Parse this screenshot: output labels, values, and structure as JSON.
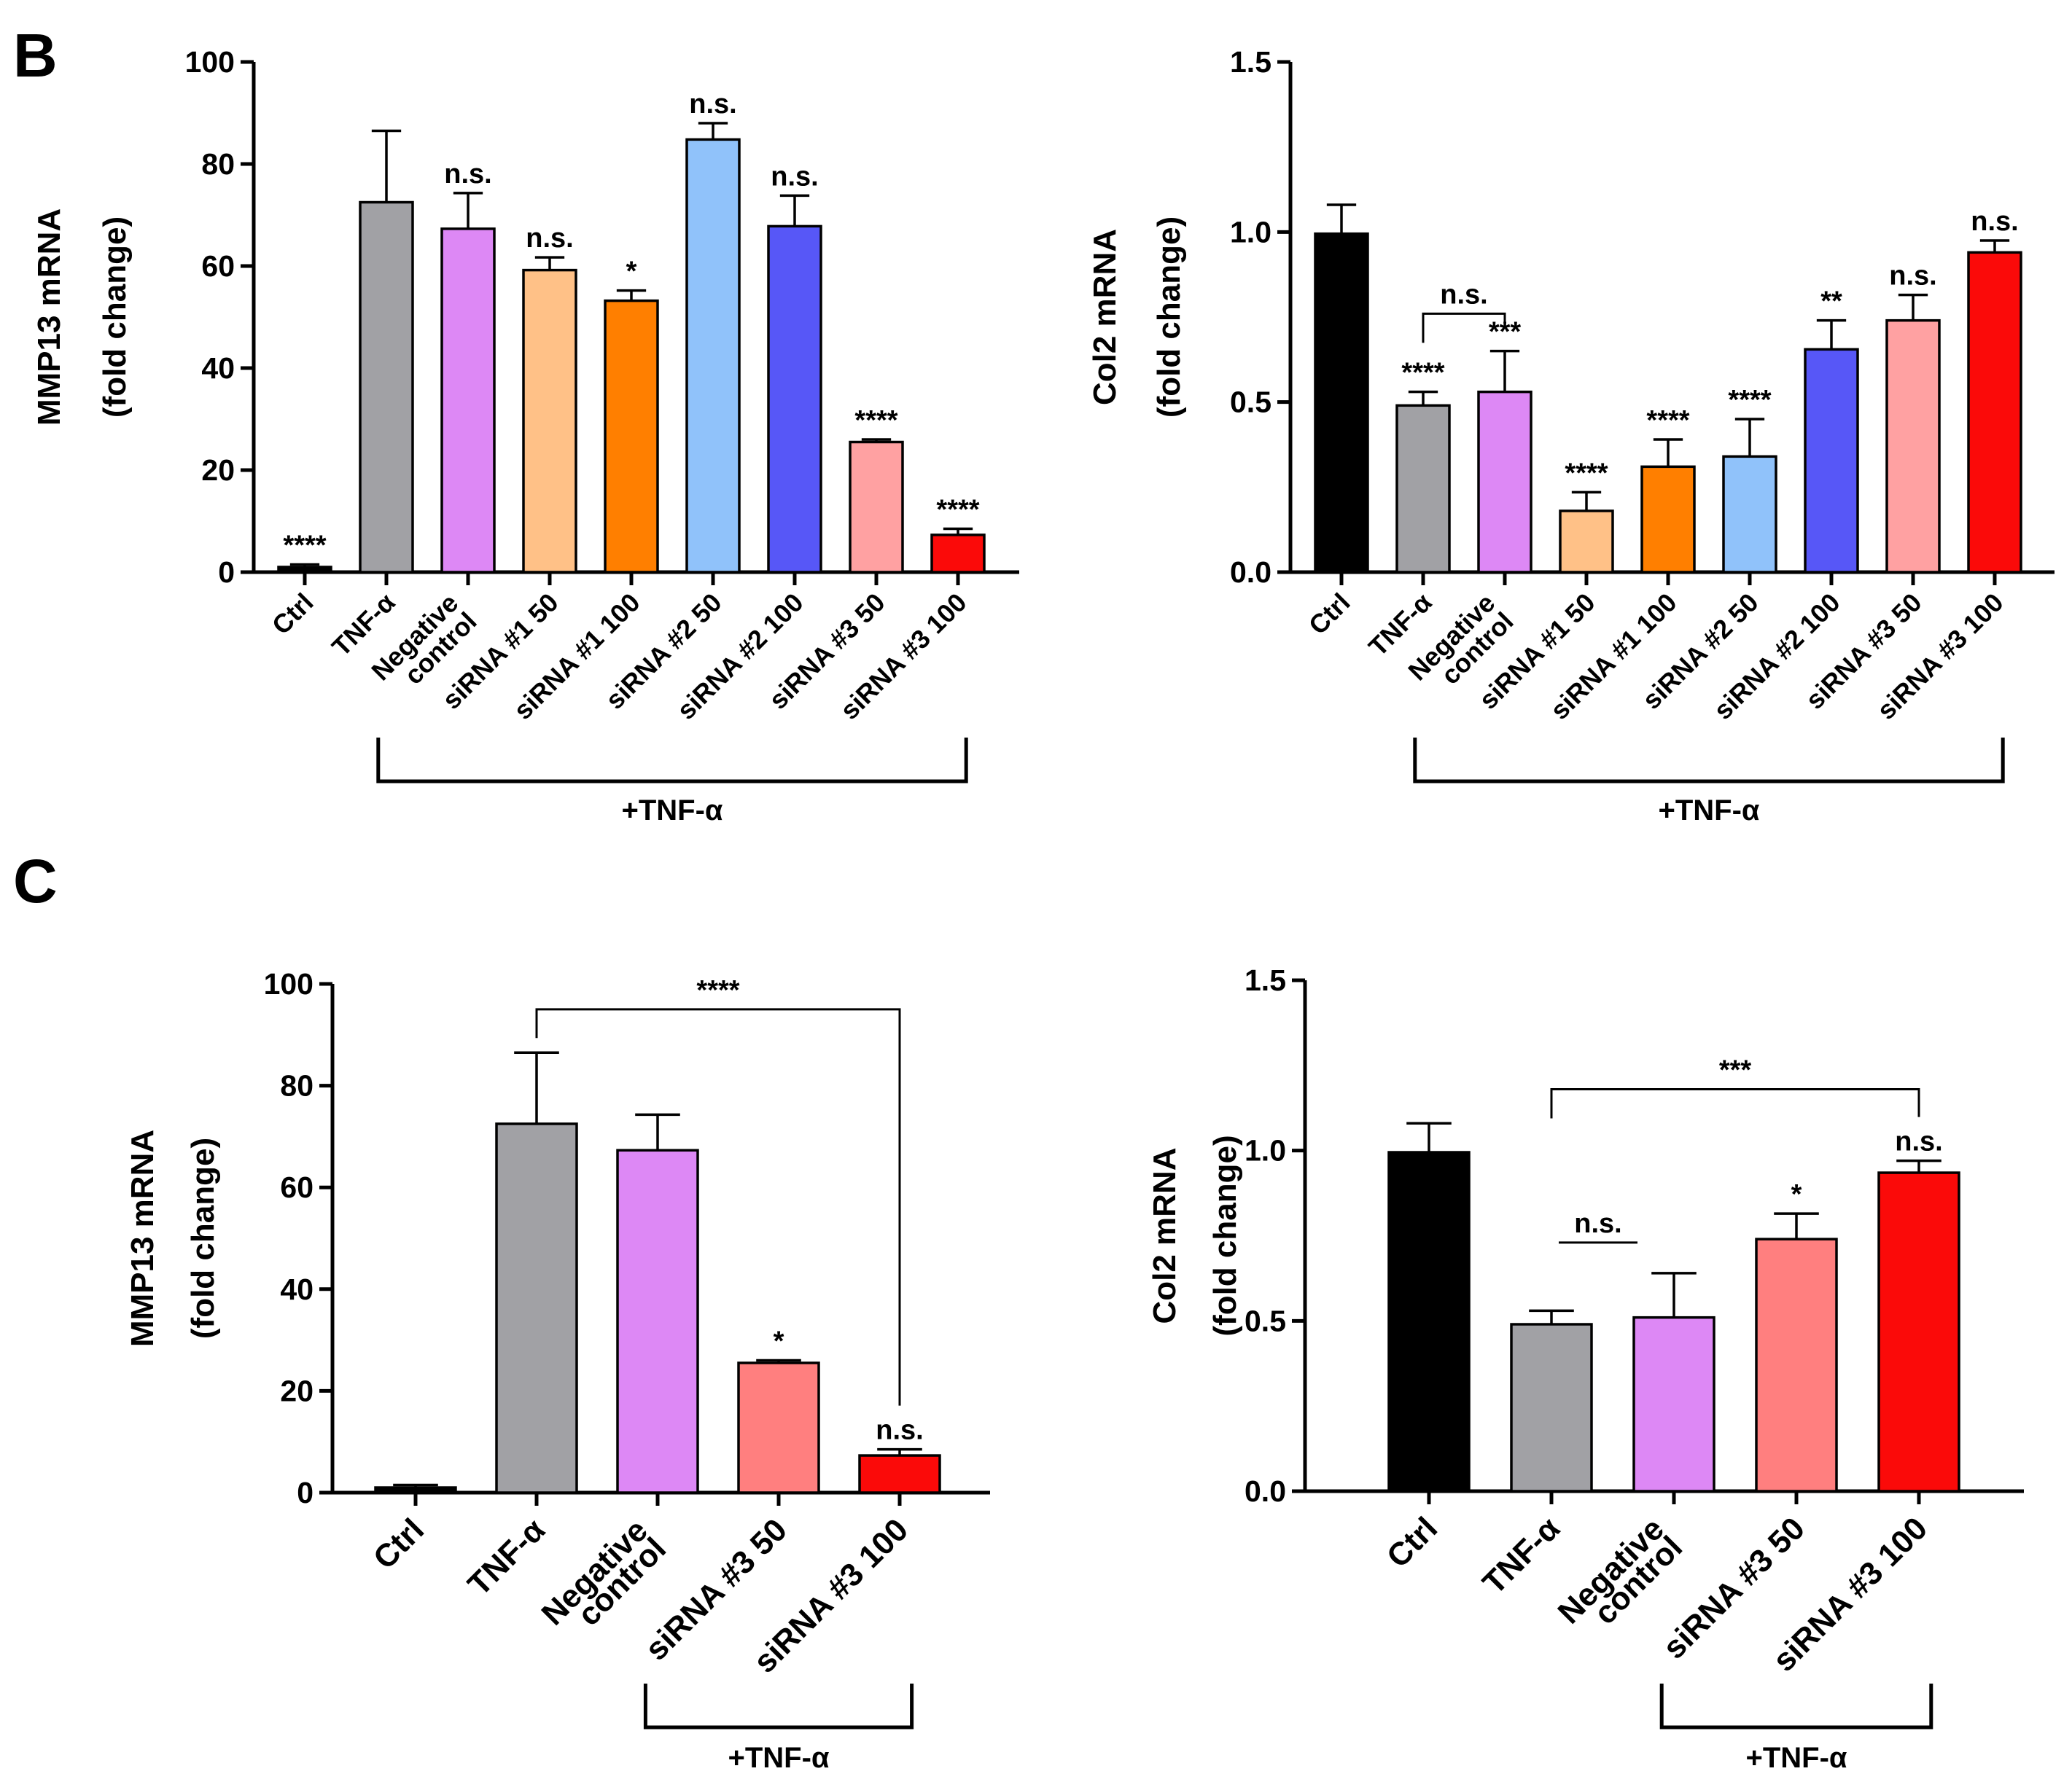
{
  "panels": {
    "B": "B",
    "C": "C"
  },
  "chart_data": [
    {
      "id": "b-mmp13",
      "panel": "B",
      "type": "bar",
      "ylabel": [
        "MMP13 mRNA",
        "(fold change)"
      ],
      "ylim": [
        0,
        100
      ],
      "yticks": [
        "0",
        "20",
        "40",
        "60",
        "80",
        "100"
      ],
      "categories": [
        [
          "Ctrl"
        ],
        [
          "TNF-α"
        ],
        [
          "Negative",
          "control"
        ],
        [
          "siRNA #1 50"
        ],
        [
          "siRNA #1 100"
        ],
        [
          "siRNA #2 50"
        ],
        [
          "siRNA #2 100"
        ],
        [
          "siRNA #3 50"
        ],
        [
          "siRNA #3 100"
        ]
      ],
      "values": [
        1,
        72.5,
        67.3,
        59.2,
        53.2,
        84.8,
        67.8,
        25.5,
        7.3
      ],
      "errors": [
        0.5,
        14,
        7,
        2.5,
        2.0,
        3.2,
        6,
        0.5,
        1.2
      ],
      "colors": [
        "#000000",
        "#a1a1a5",
        "#dd88f5",
        "#ffc187",
        "#ff7f00",
        "#90c2fa",
        "#5757f7",
        "#ffa1a2",
        "#fb0a09"
      ],
      "significance": [
        "****",
        "",
        "n.s.",
        "n.s.",
        "*",
        "n.s.",
        "n.s.",
        "****",
        "****"
      ],
      "group_label": "+TNF-α",
      "group_range": [
        1,
        8
      ],
      "comparisons": []
    },
    {
      "id": "b-col2",
      "panel": "B",
      "type": "bar",
      "ylabel": [
        "Col2 mRNA",
        "(fold change)"
      ],
      "ylim": [
        0,
        1.5
      ],
      "yticks": [
        "0.0",
        "0.5",
        "1.0",
        "1.5"
      ],
      "categories": [
        [
          "Ctrl"
        ],
        [
          "TNF-α"
        ],
        [
          "Negative",
          "control"
        ],
        [
          "siRNA #1 50"
        ],
        [
          "siRNA #1 100"
        ],
        [
          "siRNA #2 50"
        ],
        [
          "siRNA #2 100"
        ],
        [
          "siRNA #3 50"
        ],
        [
          "siRNA #3 100"
        ]
      ],
      "values": [
        0.995,
        0.49,
        0.53,
        0.18,
        0.31,
        0.34,
        0.655,
        0.74,
        0.94
      ],
      "errors": [
        0.085,
        0.04,
        0.12,
        0.055,
        0.08,
        0.11,
        0.085,
        0.075,
        0.035
      ],
      "colors": [
        "#000000",
        "#a1a1a5",
        "#dd88f5",
        "#ffc187",
        "#ff7f00",
        "#90c2fa",
        "#5757f7",
        "#ffa1a2",
        "#fb0a09"
      ],
      "significance": [
        "",
        "****",
        "***",
        "****",
        "****",
        "****",
        "**",
        "n.s.",
        "n.s."
      ],
      "group_label": "+TNF-α",
      "group_range": [
        1,
        8
      ],
      "comparisons": [
        {
          "from": 1,
          "to": 2,
          "level": 0.76,
          "label": "n.s.",
          "style": "bracket"
        }
      ]
    },
    {
      "id": "c-mmp13",
      "panel": "C",
      "type": "bar",
      "ylabel": [
        "MMP13 mRNA",
        "(fold change)"
      ],
      "ylim": [
        0,
        100
      ],
      "yticks": [
        "0",
        "20",
        "40",
        "60",
        "80",
        "100"
      ],
      "categories": [
        [
          "Ctrl"
        ],
        [
          "TNF-α"
        ],
        [
          "Negative",
          "control"
        ],
        [
          "siRNA #3 50"
        ],
        [
          "siRNA #3 100"
        ]
      ],
      "values": [
        1,
        72.5,
        67.3,
        25.5,
        7.3
      ],
      "errors": [
        0.5,
        14,
        7,
        0.5,
        1.2
      ],
      "colors": [
        "#000000",
        "#a1a1a5",
        "#dd88f5",
        "#ff7f7f",
        "#fb0a09"
      ],
      "significance": [
        "",
        "",
        "",
        "*",
        "n.s."
      ],
      "group_label": "+TNF-α",
      "group_range": [
        2,
        4
      ],
      "comparisons": [
        {
          "from": 1,
          "to": 4,
          "level": 95,
          "label": "****",
          "style": "bracket"
        }
      ]
    },
    {
      "id": "c-col2",
      "panel": "C",
      "type": "bar",
      "ylabel": [
        "Col2 mRNA",
        "(fold change)"
      ],
      "ylim": [
        0,
        1.5
      ],
      "yticks": [
        "0.0",
        "0.5",
        "1.0",
        "1.5"
      ],
      "categories": [
        [
          "Ctrl"
        ],
        [
          "TNF-α"
        ],
        [
          "Negative",
          "control"
        ],
        [
          "siRNA #3 50"
        ],
        [
          "siRNA #3 100"
        ]
      ],
      "values": [
        0.995,
        0.49,
        0.51,
        0.74,
        0.935
      ],
      "errors": [
        0.085,
        0.04,
        0.13,
        0.075,
        0.035
      ],
      "colors": [
        "#000000",
        "#a1a1a5",
        "#dd88f5",
        "#ff7f7f",
        "#fb0a09"
      ],
      "significance": [
        "",
        "",
        "",
        "*",
        "n.s."
      ],
      "group_label": "+TNF-α",
      "group_range": [
        2,
        4
      ],
      "comparisons": [
        {
          "from": 1,
          "to": 4,
          "level": 1.18,
          "label": "***",
          "style": "bracket"
        },
        {
          "from": 1,
          "to": 2,
          "level": 0.73,
          "label": "n.s.",
          "style": "line"
        }
      ]
    }
  ]
}
